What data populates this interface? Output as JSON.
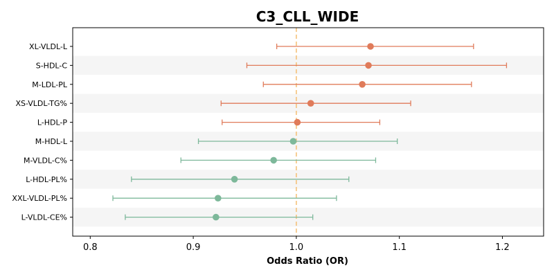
{
  "chart_data": {
    "type": "forest",
    "title": "C3_CLL_WIDE",
    "xlabel": "Odds Ratio (OR)",
    "ylabel": "",
    "xlim": [
      0.783,
      1.24
    ],
    "x_ticks": [
      "0.8",
      "0.9",
      "1.0",
      "1.1",
      "1.2"
    ],
    "reference_line": 1.0,
    "grid": false,
    "alternating_row_bands": true,
    "colors": {
      "above_one": "#E07B5A",
      "below_one": "#7DB89A",
      "reference_line": "#F5C27A",
      "band": "#F5F5F5"
    },
    "rows": [
      {
        "label": "XL-VLDL-L",
        "or": 1.072,
        "ci_low": 0.981,
        "ci_high": 1.172
      },
      {
        "label": "S-HDL-C",
        "or": 1.07,
        "ci_low": 0.952,
        "ci_high": 1.204
      },
      {
        "label": "M-LDL-PL",
        "or": 1.064,
        "ci_low": 0.968,
        "ci_high": 1.17
      },
      {
        "label": "XS-VLDL-TG%",
        "or": 1.014,
        "ci_low": 0.927,
        "ci_high": 1.111
      },
      {
        "label": "L-HDL-P",
        "or": 1.001,
        "ci_low": 0.928,
        "ci_high": 1.081
      },
      {
        "label": "M-HDL-L",
        "or": 0.997,
        "ci_low": 0.905,
        "ci_high": 1.098
      },
      {
        "label": "M-VLDL-C%",
        "or": 0.978,
        "ci_low": 0.888,
        "ci_high": 1.077
      },
      {
        "label": "L-HDL-PL%",
        "or": 0.94,
        "ci_low": 0.84,
        "ci_high": 1.051
      },
      {
        "label": "XXL-VLDL-PL%",
        "or": 0.924,
        "ci_low": 0.822,
        "ci_high": 1.039
      },
      {
        "label": "L-VLDL-CE%",
        "or": 0.922,
        "ci_low": 0.834,
        "ci_high": 1.016
      }
    ]
  }
}
